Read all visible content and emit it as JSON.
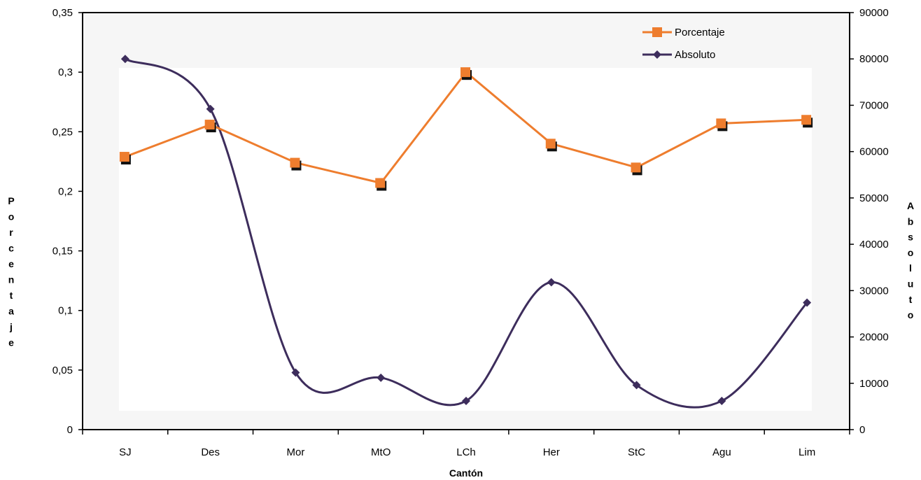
{
  "chart_data": {
    "type": "line",
    "title": "",
    "xlabel": "Cantón",
    "ylabel": "Porcentaje",
    "y2label": "Absoluto",
    "categories": [
      "SJ",
      "Des",
      "Mor",
      "MtO",
      "LCh",
      "Her",
      "StC",
      "Agu",
      "Lim"
    ],
    "ylim": [
      0,
      0.35
    ],
    "yticks": [
      0,
      0.05,
      0.1,
      0.15,
      0.2,
      0.25,
      0.3,
      0.35
    ],
    "ytick_labels": [
      "0",
      "0,05",
      "0,1",
      "0,15",
      "0,2",
      "0,25",
      "0,3",
      "0,35"
    ],
    "y2lim": [
      0,
      90000
    ],
    "y2ticks": [
      0,
      10000,
      20000,
      30000,
      40000,
      50000,
      60000,
      70000,
      80000,
      90000
    ],
    "y2tick_labels": [
      "0",
      "10000",
      "20000",
      "30000",
      "40000",
      "50000",
      "60000",
      "70000",
      "80000",
      "90000"
    ],
    "legend_position": "top-right",
    "grid": false,
    "series": [
      {
        "name": "Porcentaje",
        "axis": "left",
        "marker": "square",
        "smooth": false,
        "color": "#ee7d2e",
        "values": [
          0.229,
          0.256,
          0.224,
          0.207,
          0.3,
          0.24,
          0.22,
          0.257,
          0.26
        ]
      },
      {
        "name": "Absoluto",
        "axis": "right",
        "marker": "diamond",
        "smooth": true,
        "color": "#3d2d5c",
        "values": [
          80000,
          69200,
          12300,
          11200,
          6200,
          31800,
          9600,
          6200,
          27400
        ]
      }
    ]
  }
}
